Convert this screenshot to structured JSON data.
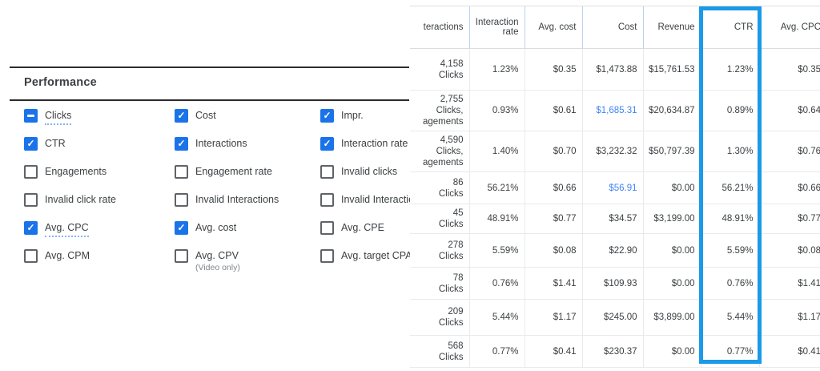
{
  "colors": {
    "accent_blue": "#1a73e8",
    "highlight_box_blue": "#1a9ae8",
    "link_blue": "#4285f4",
    "divider_dark": "#2b2b2b"
  },
  "panel": {
    "title": "Performance",
    "columns": [
      {
        "items": [
          {
            "label": "Clicks",
            "state": "indeterminate",
            "underline": true
          },
          {
            "label": "CTR",
            "state": "checked"
          },
          {
            "label": "Engagements",
            "state": "unchecked"
          },
          {
            "label": "Invalid click rate",
            "state": "unchecked"
          },
          {
            "label": "Avg. CPC",
            "state": "checked",
            "underline": true
          },
          {
            "label": "Avg. CPM",
            "state": "unchecked"
          }
        ]
      },
      {
        "items": [
          {
            "label": "Cost",
            "state": "checked"
          },
          {
            "label": "Interactions",
            "state": "checked"
          },
          {
            "label": "Engagement rate",
            "state": "unchecked"
          },
          {
            "label": "Invalid Interactions",
            "state": "unchecked"
          },
          {
            "label": "Avg. cost",
            "state": "checked"
          },
          {
            "label": "Avg. CPV",
            "sub": "(Video only)",
            "state": "unchecked"
          }
        ]
      },
      {
        "items": [
          {
            "label": "Impr.",
            "state": "checked"
          },
          {
            "label": "Interaction rate",
            "state": "checked"
          },
          {
            "label": "Invalid clicks",
            "state": "unchecked"
          },
          {
            "label": "Invalid Interactio",
            "state": "unchecked"
          },
          {
            "label": "Avg. CPE",
            "state": "unchecked"
          },
          {
            "label": "Avg. target CPA",
            "state": "unchecked"
          }
        ]
      }
    ]
  },
  "table": {
    "columns": [
      "teractions",
      "Interaction rate",
      "Avg. cost",
      "Cost",
      "Revenue",
      "CTR",
      "Avg. CPC"
    ],
    "highlighted_column": "CTR",
    "rows": [
      {
        "interactions": [
          "4,158",
          "Clicks"
        ],
        "interaction_rate": "1.23%",
        "avg_cost": "$0.35",
        "cost": "$1,473.88",
        "cost_is_link": false,
        "revenue": "$15,761.53",
        "ctr": "1.23%",
        "avg_cpc": "$0.35"
      },
      {
        "interactions": [
          "2,755",
          "Clicks,",
          "agements"
        ],
        "interaction_rate": "0.93%",
        "avg_cost": "$0.61",
        "cost": "$1,685.31",
        "cost_is_link": true,
        "revenue": "$20,634.87",
        "ctr": "0.89%",
        "avg_cpc": "$0.64"
      },
      {
        "interactions": [
          "4,590",
          "Clicks,",
          "agements"
        ],
        "interaction_rate": "1.40%",
        "avg_cost": "$0.70",
        "cost": "$3,232.32",
        "cost_is_link": false,
        "revenue": "$50,797.39",
        "ctr": "1.30%",
        "avg_cpc": "$0.76"
      },
      {
        "interactions": [
          "86",
          "Clicks"
        ],
        "interaction_rate": "56.21%",
        "avg_cost": "$0.66",
        "cost": "$56.91",
        "cost_is_link": true,
        "revenue": "$0.00",
        "ctr": "56.21%",
        "avg_cpc": "$0.66"
      },
      {
        "interactions": [
          "45",
          "Clicks"
        ],
        "interaction_rate": "48.91%",
        "avg_cost": "$0.77",
        "cost": "$34.57",
        "cost_is_link": false,
        "revenue": "$3,199.00",
        "ctr": "48.91%",
        "avg_cpc": "$0.77"
      },
      {
        "interactions": [
          "278",
          "Clicks"
        ],
        "interaction_rate": "5.59%",
        "avg_cost": "$0.08",
        "cost": "$22.90",
        "cost_is_link": false,
        "revenue": "$0.00",
        "ctr": "5.59%",
        "avg_cpc": "$0.08"
      },
      {
        "interactions": [
          "78",
          "Clicks"
        ],
        "interaction_rate": "0.76%",
        "avg_cost": "$1.41",
        "cost": "$109.93",
        "cost_is_link": false,
        "revenue": "$0.00",
        "ctr": "0.76%",
        "avg_cpc": "$1.41"
      },
      {
        "interactions": [
          "209",
          "Clicks"
        ],
        "interaction_rate": "5.44%",
        "avg_cost": "$1.17",
        "cost": "$245.00",
        "cost_is_link": false,
        "revenue": "$3,899.00",
        "ctr": "5.44%",
        "avg_cpc": "$1.17"
      },
      {
        "interactions": [
          "568",
          "Clicks"
        ],
        "interaction_rate": "0.77%",
        "avg_cost": "$0.41",
        "cost": "$230.37",
        "cost_is_link": false,
        "revenue": "$0.00",
        "ctr": "0.77%",
        "avg_cpc": "$0.41"
      }
    ]
  }
}
